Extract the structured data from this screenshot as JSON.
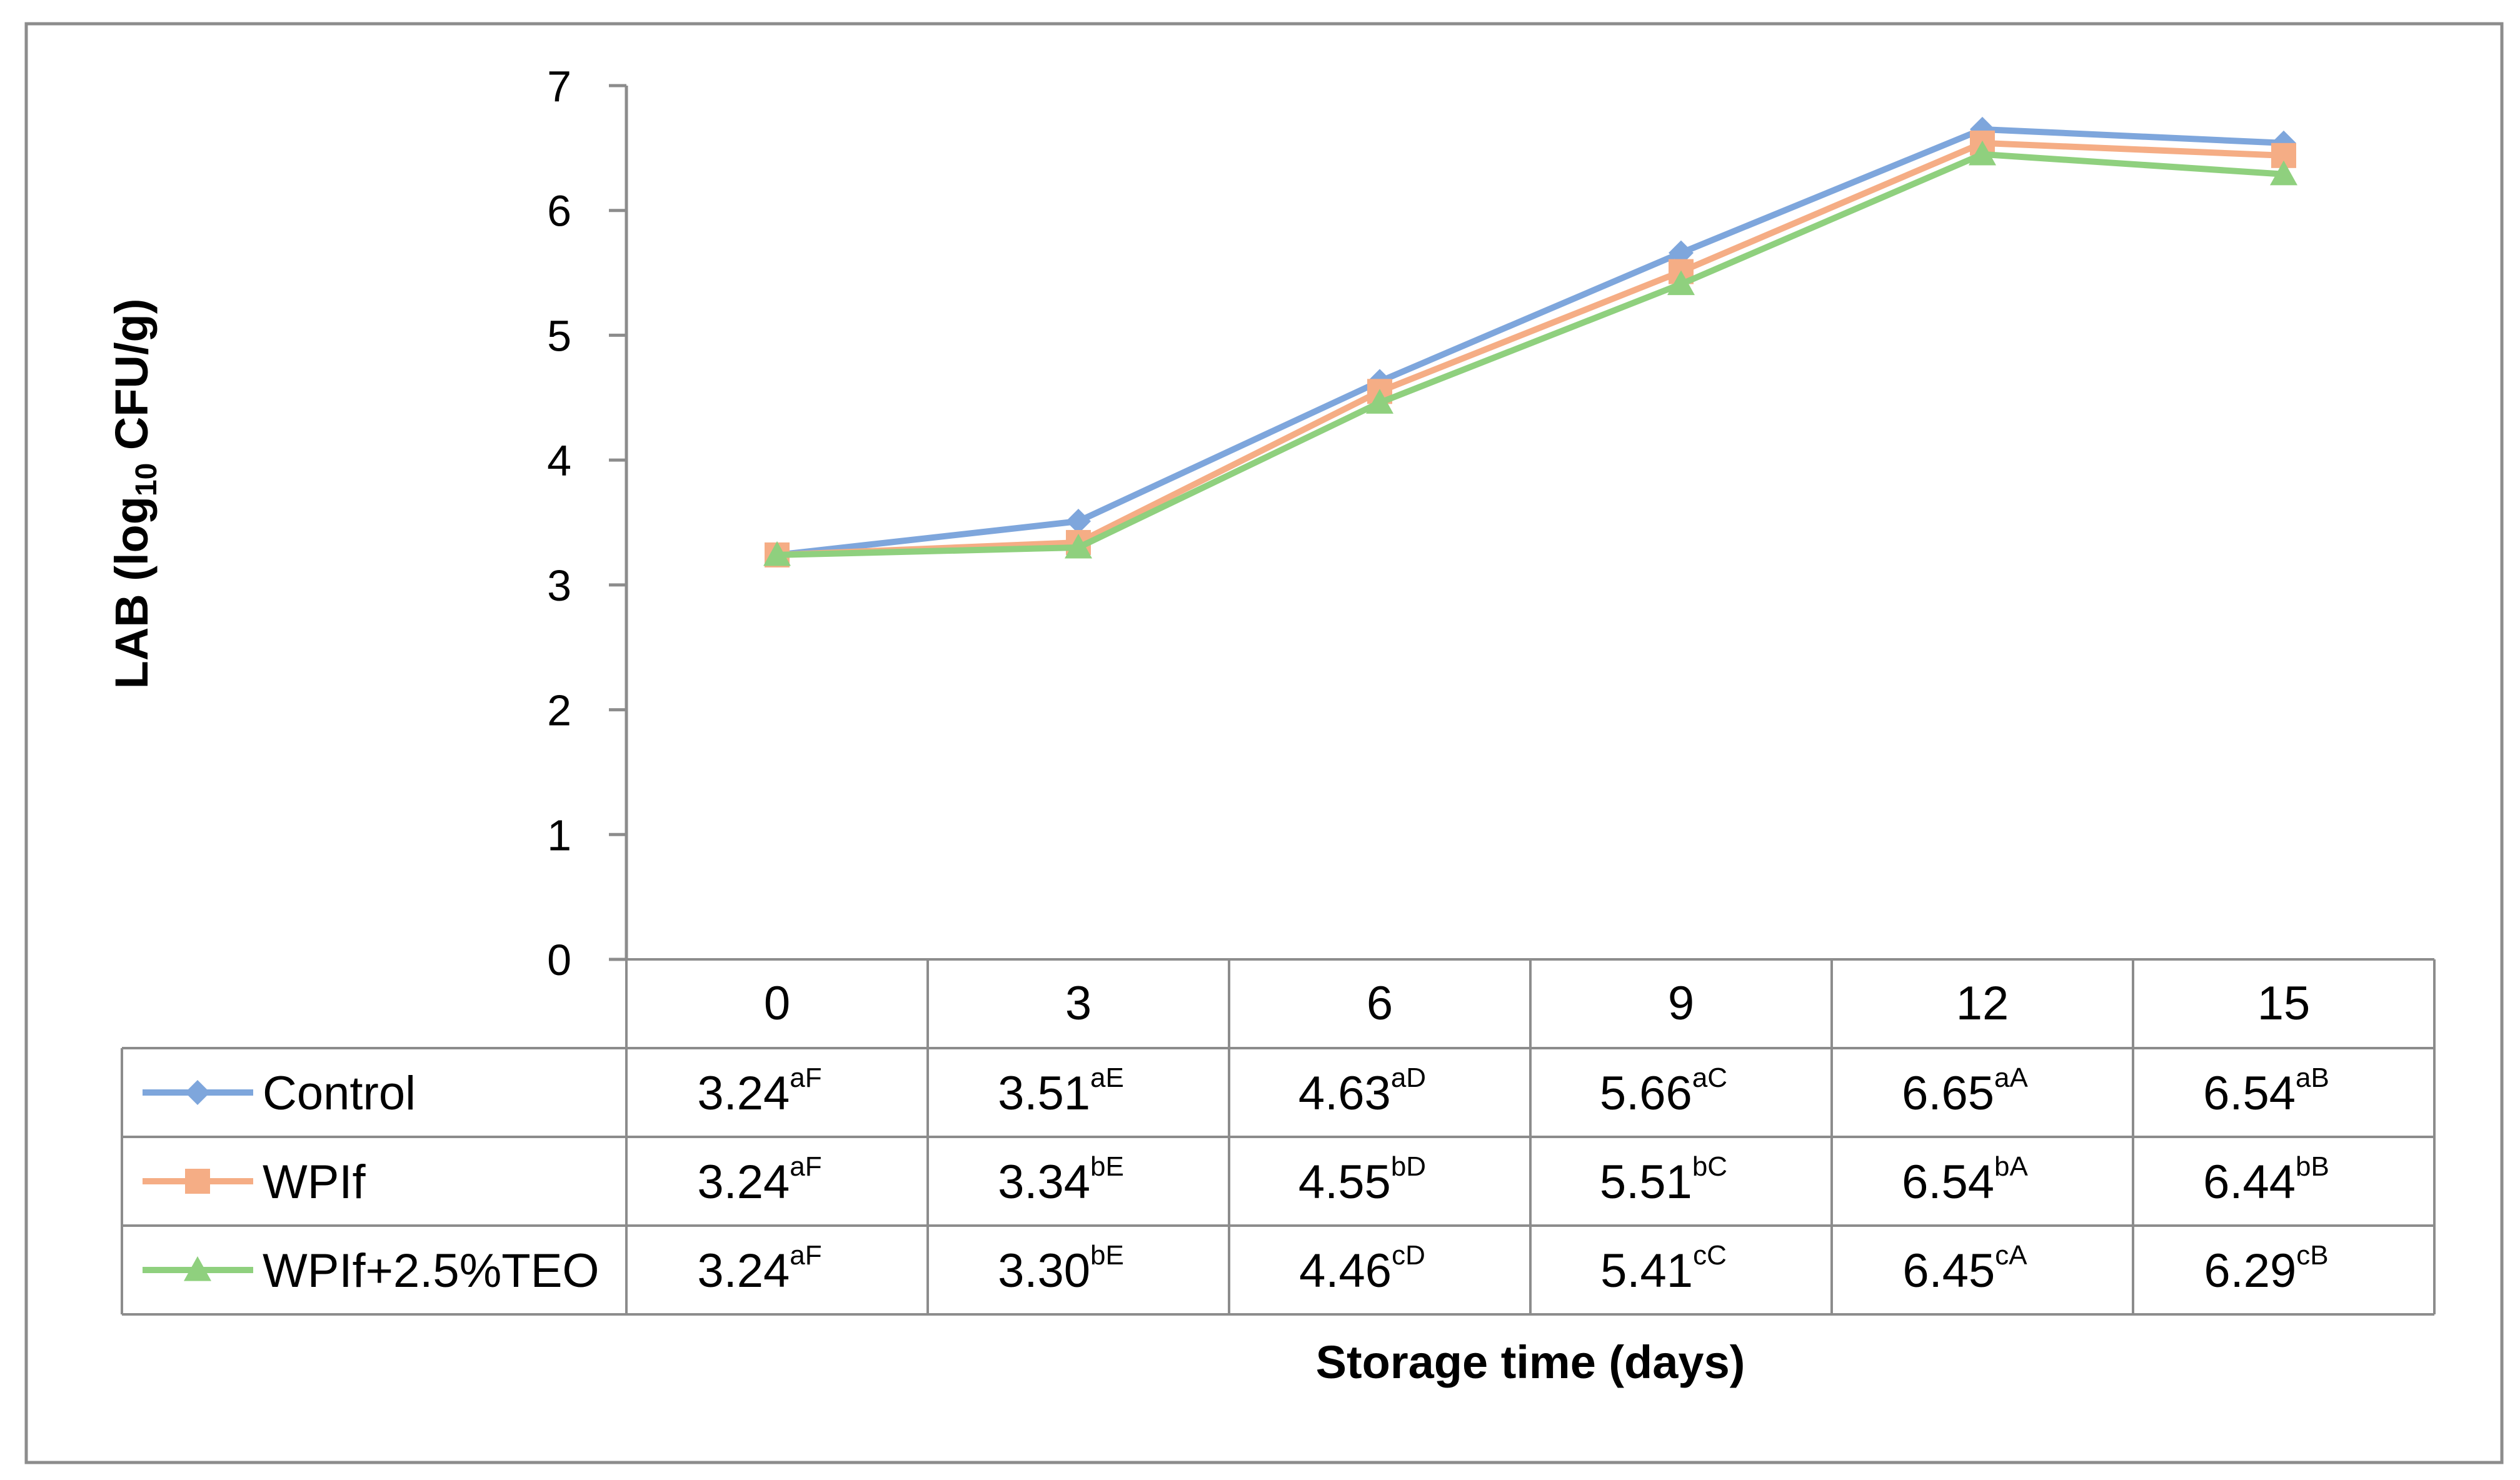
{
  "chart_data": {
    "type": "line",
    "title": "",
    "ylabel": "LAB (log10 CFU/g)",
    "ylabel_main": "LAB (log",
    "ylabel_sub": "10",
    "ylabel_tail": " CFU/g)",
    "xlabel": "Storage time (days)",
    "ylim": [
      0,
      7
    ],
    "yticks": [
      "0",
      "1",
      "2",
      "3",
      "4",
      "5",
      "6",
      "7"
    ],
    "categories": [
      "0",
      "3",
      "6",
      "9",
      "12",
      "15"
    ],
    "legend_position": "data-table-left",
    "series": [
      {
        "name": "Control",
        "color": "#7ea6dc",
        "marker": "diamond",
        "values": [
          3.24,
          3.51,
          4.63,
          5.66,
          6.65,
          6.54
        ],
        "labels": [
          "3.24",
          "3.51",
          "4.63",
          "5.66",
          "6.65",
          "6.54"
        ],
        "letters": [
          "aF",
          "aE",
          "aD",
          "aC",
          "aA",
          "aB"
        ]
      },
      {
        "name": "WPIf",
        "color": "#f5ad85",
        "marker": "square",
        "values": [
          3.24,
          3.34,
          4.55,
          5.51,
          6.54,
          6.44
        ],
        "labels": [
          "3.24",
          "3.34",
          "4.55",
          "5.51",
          "6.54",
          "6.44"
        ],
        "letters": [
          "aF",
          "bE",
          "bD",
          "bC",
          "bA",
          "bB"
        ]
      },
      {
        "name": "WPIf+2.5%TEO",
        "color": "#8fd07e",
        "marker": "triangle",
        "values": [
          3.24,
          3.3,
          4.46,
          5.41,
          6.45,
          6.29
        ],
        "labels": [
          "3.24",
          "3.30",
          "4.46",
          "5.41",
          "6.45",
          "6.29"
        ],
        "letters": [
          "aF",
          "bE",
          "cD",
          "cC",
          "cA",
          "cB"
        ]
      }
    ]
  }
}
